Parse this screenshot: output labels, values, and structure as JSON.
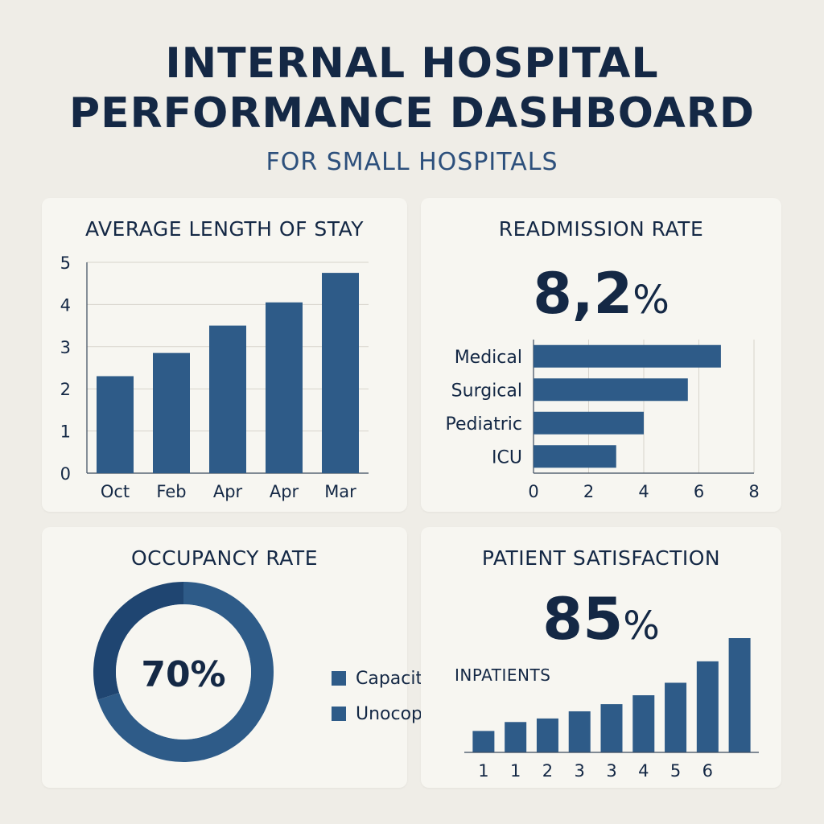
{
  "header": {
    "title_line1": "INTERNAL HOSPITAL",
    "title_line2": "PERFORMANCE DASHBOARD",
    "subtitle": "FOR SMALL HOSPITALS"
  },
  "colors": {
    "bar": "#2e5b88",
    "donut_dark": "#1f4571",
    "donut_light": "#2e5b88",
    "text": "#142845",
    "grid": "#d7d4cc"
  },
  "chart_data": [
    {
      "type": "bar",
      "title": "AVERAGE LENGTH OF STAY",
      "categories": [
        "Oct",
        "Feb",
        "Apr",
        "Apr",
        "Mar"
      ],
      "values": [
        2.3,
        2.85,
        3.5,
        4.05,
        4.75
      ],
      "ylim": [
        0,
        5
      ],
      "yticks": [
        "0",
        "1",
        "2",
        "3",
        "4",
        "5"
      ],
      "grid": true
    },
    {
      "type": "bar",
      "orientation": "horizontal",
      "title": "READMISSION RATE",
      "headline_value": "8,2",
      "headline_unit": "%",
      "categories": [
        "Medical",
        "Surgical",
        "Pediatric",
        "ICU"
      ],
      "values": [
        6.8,
        5.6,
        4.0,
        3.0
      ],
      "xlim": [
        0,
        8
      ],
      "xticks": [
        "0",
        "2",
        "4",
        "6",
        "8"
      ],
      "grid": true
    },
    {
      "type": "pie",
      "title": "OCCUPANCY RATE",
      "center_label": "70%",
      "slices": [
        {
          "label": "Capacity",
          "value": 70
        },
        {
          "label": "Unocop.",
          "value": 30
        }
      ],
      "legend_position": "right"
    },
    {
      "type": "bar",
      "title": "PATIENT SATISFACTION",
      "headline_value": "85",
      "headline_unit": "%",
      "series_label": "INPATIENTS",
      "categories": [
        "1",
        "1",
        "2",
        "3",
        "3",
        "4",
        "5",
        "6",
        ""
      ],
      "values": [
        1.2,
        1.7,
        1.9,
        2.3,
        2.7,
        3.2,
        3.9,
        5.1,
        6.4
      ]
    }
  ]
}
